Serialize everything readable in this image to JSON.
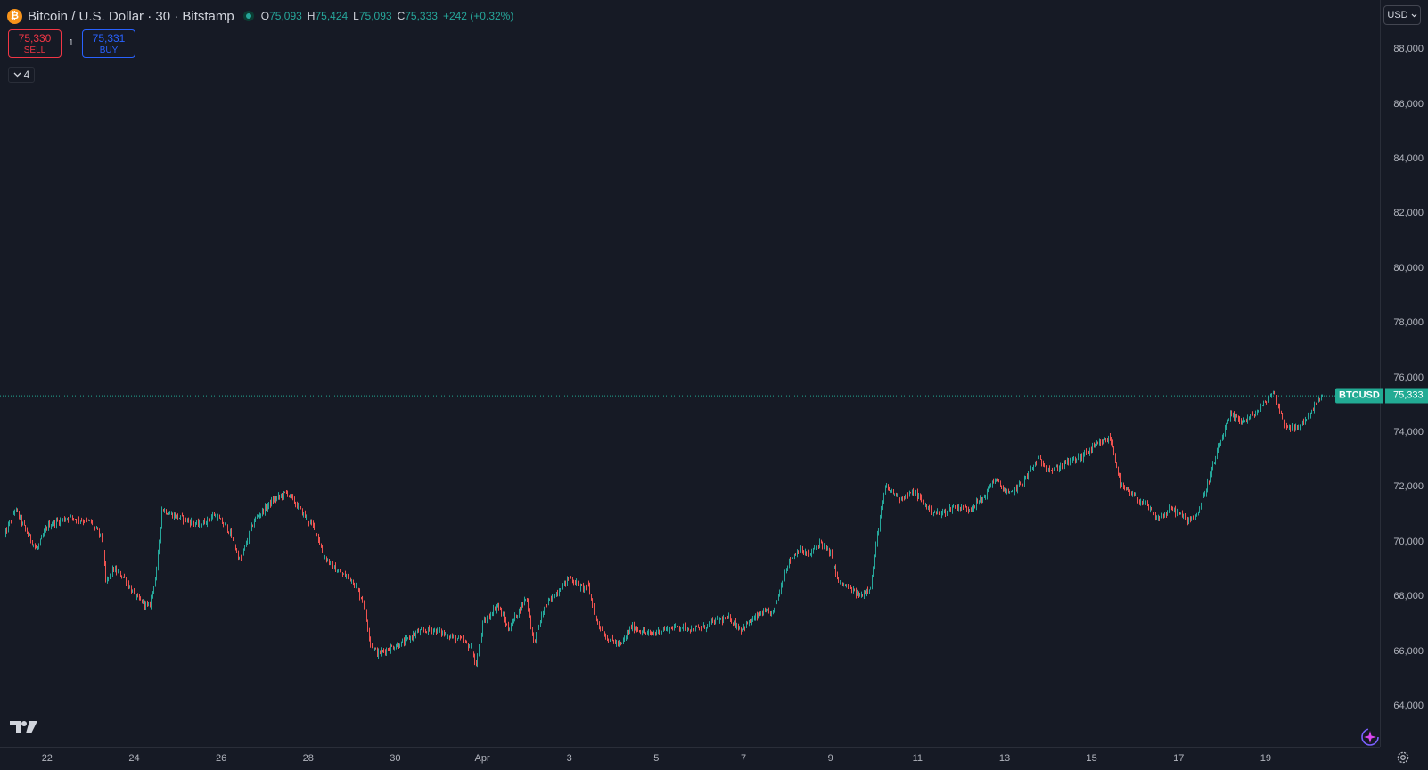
{
  "legend": {
    "symbol_title": "Bitcoin / U.S. Dollar · 30 · Bitstamp",
    "icon": "bitcoin-icon",
    "ohlc": {
      "o_label": "O",
      "o_value": "75,093",
      "h_label": "H",
      "h_value": "75,424",
      "l_label": "L",
      "l_value": "75,093",
      "c_label": "C",
      "c_value": "75,333",
      "change": "+242 (+0.32%)"
    }
  },
  "trade": {
    "sell_price": "75,330",
    "sell_label": "SELL",
    "spread": "1",
    "buy_price": "75,331",
    "buy_label": "BUY"
  },
  "indicators_toggle": {
    "count": "4"
  },
  "currency": "USD",
  "last_price": {
    "symbol": "BTCUSD",
    "value": "75,333"
  },
  "colors": {
    "background": "#161a25",
    "up": "#26a69a",
    "down": "#ef5350",
    "grid": "#2a2e39",
    "text": "#b2b5be",
    "sell": "#f23645",
    "buy": "#2962ff",
    "last_price": "#22ab94"
  },
  "chart_data": {
    "type": "candlestick",
    "title": "Bitcoin / U.S. Dollar · 30 · Bitstamp",
    "interval": "30",
    "grid": false,
    "ylim": [
      62500,
      89800
    ],
    "y_ticks": [
      64000,
      66000,
      68000,
      70000,
      72000,
      74000,
      76000,
      78000,
      80000,
      82000,
      84000,
      86000,
      88000
    ],
    "y_tick_labels": [
      "64,000",
      "66,000",
      "68,000",
      "70,000",
      "72,000",
      "74,000",
      "76,000",
      "78,000",
      "80,000",
      "82,000",
      "84,000",
      "86,000",
      "88,000"
    ],
    "x_range": [
      "2025-03-21T00:00",
      "2025-04-20T07:30"
    ],
    "x_ticks": [
      "2025-03-22",
      "2025-03-24",
      "2025-03-26",
      "2025-03-28",
      "2025-03-30",
      "2025-04-01",
      "2025-04-03",
      "2025-04-05",
      "2025-04-07",
      "2025-04-09",
      "2025-04-11",
      "2025-04-13",
      "2025-04-15",
      "2025-04-17",
      "2025-04-19"
    ],
    "x_tick_labels": [
      "22",
      "24",
      "26",
      "28",
      "30",
      "Apr",
      "3",
      "5",
      "7",
      "9",
      "11",
      "13",
      "15",
      "17",
      "19"
    ],
    "last_price": 75333,
    "price_path": [
      [
        "2025-03-21T00:00",
        70200
      ],
      [
        "2025-03-21T06:00",
        71200
      ],
      [
        "2025-03-21T12:00",
        70400
      ],
      [
        "2025-03-21T18:00",
        69700
      ],
      [
        "2025-03-22T00:00",
        70600
      ],
      [
        "2025-03-22T12:00",
        70900
      ],
      [
        "2025-03-23T00:00",
        70700
      ],
      [
        "2025-03-23T06:00",
        70100
      ],
      [
        "2025-03-23T08:00",
        68500
      ],
      [
        "2025-03-23T12:00",
        69000
      ],
      [
        "2025-03-23T18:00",
        68700
      ],
      [
        "2025-03-24T00:00",
        68000
      ],
      [
        "2025-03-24T08:00",
        67600
      ],
      [
        "2025-03-24T12:00",
        68900
      ],
      [
        "2025-03-24T15:00",
        71200
      ],
      [
        "2025-03-24T20:00",
        71000
      ],
      [
        "2025-03-25T04:00",
        70800
      ],
      [
        "2025-03-25T12:00",
        70600
      ],
      [
        "2025-03-25T20:00",
        71000
      ],
      [
        "2025-03-26T04:00",
        70400
      ],
      [
        "2025-03-26T10:00",
        69300
      ],
      [
        "2025-03-26T18:00",
        70800
      ],
      [
        "2025-03-27T04:00",
        71500
      ],
      [
        "2025-03-27T12:00",
        71800
      ],
      [
        "2025-03-27T20:00",
        71100
      ],
      [
        "2025-03-28T04:00",
        70400
      ],
      [
        "2025-03-28T08:00",
        69500
      ],
      [
        "2025-03-28T16:00",
        68900
      ],
      [
        "2025-03-29T00:00",
        68600
      ],
      [
        "2025-03-29T06:00",
        67800
      ],
      [
        "2025-03-29T10:00",
        66300
      ],
      [
        "2025-03-29T14:00",
        65900
      ],
      [
        "2025-03-29T20:00",
        66100
      ],
      [
        "2025-03-30T04:00",
        66300
      ],
      [
        "2025-03-30T12:00",
        66700
      ],
      [
        "2025-03-30T20:00",
        66800
      ],
      [
        "2025-03-31T04:00",
        66600
      ],
      [
        "2025-03-31T12:00",
        66400
      ],
      [
        "2025-03-31T18:00",
        66100
      ],
      [
        "2025-03-31T20:00",
        65400
      ],
      [
        "2025-04-01T00:00",
        67000
      ],
      [
        "2025-04-01T08:00",
        67700
      ],
      [
        "2025-04-01T14:00",
        66800
      ],
      [
        "2025-04-01T20:00",
        67500
      ],
      [
        "2025-04-02T00:00",
        68000
      ],
      [
        "2025-04-02T04:00",
        66300
      ],
      [
        "2025-04-02T10:00",
        67600
      ],
      [
        "2025-04-02T16:00",
        68100
      ],
      [
        "2025-04-02T20:00",
        68400
      ],
      [
        "2025-04-03T00:00",
        68700
      ],
      [
        "2025-04-03T06:00",
        68300
      ],
      [
        "2025-04-03T10:00",
        68400
      ],
      [
        "2025-04-03T14:00",
        67200
      ],
      [
        "2025-04-03T20:00",
        66500
      ],
      [
        "2025-04-04T04:00",
        66200
      ],
      [
        "2025-04-04T10:00",
        66900
      ],
      [
        "2025-04-04T20:00",
        66600
      ],
      [
        "2025-04-05T04:00",
        66800
      ],
      [
        "2025-04-05T12:00",
        66900
      ],
      [
        "2025-04-06T00:00",
        66800
      ],
      [
        "2025-04-06T08:00",
        67100
      ],
      [
        "2025-04-06T16:00",
        67200
      ],
      [
        "2025-04-06T22:00",
        66800
      ],
      [
        "2025-04-07T04:00",
        67100
      ],
      [
        "2025-04-07T10:00",
        67400
      ],
      [
        "2025-04-07T16:00",
        67400
      ],
      [
        "2025-04-08T00:00",
        69200
      ],
      [
        "2025-04-08T06:00",
        69700
      ],
      [
        "2025-04-08T12:00",
        69500
      ],
      [
        "2025-04-08T18:00",
        70000
      ],
      [
        "2025-04-09T00:00",
        69500
      ],
      [
        "2025-04-09T04:00",
        68500
      ],
      [
        "2025-04-09T10:00",
        68300
      ],
      [
        "2025-04-09T16:00",
        68000
      ],
      [
        "2025-04-09T22:00",
        68400
      ],
      [
        "2025-04-10T02:00",
        70500
      ],
      [
        "2025-04-10T06:00",
        72000
      ],
      [
        "2025-04-10T14:00",
        71600
      ],
      [
        "2025-04-10T22:00",
        71800
      ],
      [
        "2025-04-11T06:00",
        71200
      ],
      [
        "2025-04-11T12:00",
        71000
      ],
      [
        "2025-04-11T20:00",
        71300
      ],
      [
        "2025-04-12T04:00",
        71200
      ],
      [
        "2025-04-12T12:00",
        71600
      ],
      [
        "2025-04-12T18:00",
        72300
      ],
      [
        "2025-04-13T02:00",
        71700
      ],
      [
        "2025-04-13T10:00",
        72200
      ],
      [
        "2025-04-13T18:00",
        73000
      ],
      [
        "2025-04-14T02:00",
        72600
      ],
      [
        "2025-04-14T10:00",
        72900
      ],
      [
        "2025-04-14T18:00",
        73100
      ],
      [
        "2025-04-15T02:00",
        73500
      ],
      [
        "2025-04-15T10:00",
        73800
      ],
      [
        "2025-04-15T16:00",
        72000
      ],
      [
        "2025-04-15T22:00",
        71700
      ],
      [
        "2025-04-16T06:00",
        71300
      ],
      [
        "2025-04-16T12:00",
        70800
      ],
      [
        "2025-04-16T20:00",
        71200
      ],
      [
        "2025-04-17T04:00",
        70800
      ],
      [
        "2025-04-17T10:00",
        71000
      ],
      [
        "2025-04-17T16:00",
        72200
      ],
      [
        "2025-04-17T22:00",
        73500
      ],
      [
        "2025-04-18T04:00",
        74600
      ],
      [
        "2025-04-18T12:00",
        74400
      ],
      [
        "2025-04-18T20:00",
        74800
      ],
      [
        "2025-04-19T04:00",
        75500
      ],
      [
        "2025-04-19T10:00",
        74300
      ],
      [
        "2025-04-19T16:00",
        74100
      ],
      [
        "2025-04-19T22:00",
        74500
      ],
      [
        "2025-04-20T04:00",
        75100
      ],
      [
        "2025-04-20T07:30",
        75333
      ]
    ]
  }
}
